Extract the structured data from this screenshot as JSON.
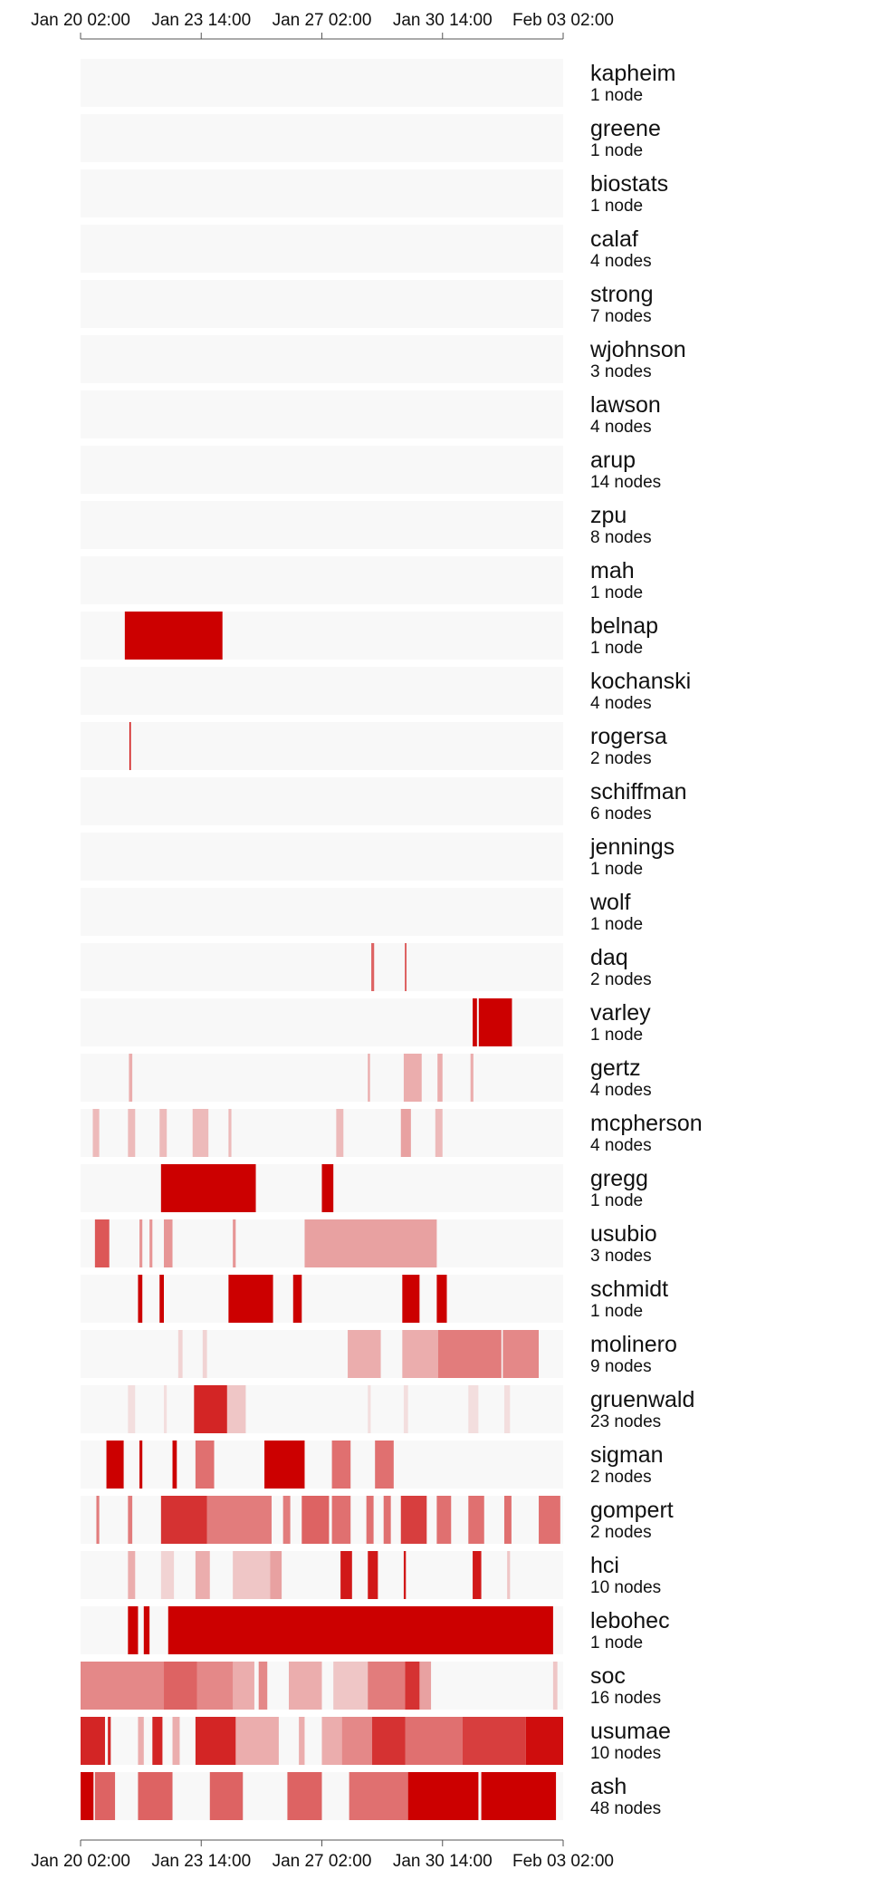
{
  "chart_data": {
    "type": "timeline-heatmap",
    "x_axis": {
      "domain": [
        "2024-01-20T02:00",
        "2024-02-03T02:00"
      ],
      "ticks": [
        {
          "t": "2024-01-20T02:00",
          "label": "Jan 20 02:00"
        },
        {
          "t": "2024-01-23T14:00",
          "label": "Jan 23 14:00"
        },
        {
          "t": "2024-01-27T02:00",
          "label": "Jan 27 02:00"
        },
        {
          "t": "2024-01-30T14:00",
          "label": "Jan 30 14:00"
        },
        {
          "t": "2024-02-03T02:00",
          "label": "Feb 03 02:00"
        }
      ]
    },
    "colors": {
      "high": "#cc0000",
      "background": "#f8f8f8",
      "axis": "#555555",
      "text": "#111111"
    },
    "rows": [
      {
        "name": "kapheim",
        "nodes": "1 node",
        "segments": []
      },
      {
        "name": "greene",
        "nodes": "1 node",
        "segments": []
      },
      {
        "name": "biostats",
        "nodes": "1 node",
        "segments": []
      },
      {
        "name": "calaf",
        "nodes": "4 nodes",
        "segments": []
      },
      {
        "name": "strong",
        "nodes": "7 nodes",
        "segments": []
      },
      {
        "name": "wjohnson",
        "nodes": "3 nodes",
        "segments": []
      },
      {
        "name": "lawson",
        "nodes": "4 nodes",
        "segments": []
      },
      {
        "name": "arup",
        "nodes": "14 nodes",
        "segments": []
      },
      {
        "name": "zpu",
        "nodes": "8 nodes",
        "segments": []
      },
      {
        "name": "mah",
        "nodes": "1 node",
        "segments": []
      },
      {
        "name": "belnap",
        "nodes": "1 node",
        "segments": [
          {
            "start": "2024-01-21T08:48",
            "end": "2024-01-24T04:47",
            "level": 1.0
          }
        ]
      },
      {
        "name": "kochanski",
        "nodes": "4 nodes",
        "segments": []
      },
      {
        "name": "rogersa",
        "nodes": "2 nodes",
        "segments": [
          {
            "start": "2024-01-21T12:00",
            "end": "2024-01-21T13:00",
            "level": 0.9
          }
        ]
      },
      {
        "name": "schiffman",
        "nodes": "6 nodes",
        "segments": []
      },
      {
        "name": "jennings",
        "nodes": "1 node",
        "segments": []
      },
      {
        "name": "wolf",
        "nodes": "1 node",
        "segments": []
      },
      {
        "name": "daq",
        "nodes": "2 nodes",
        "segments": [
          {
            "start": "2024-01-28T12:24",
            "end": "2024-01-28T14:24",
            "level": 0.6
          },
          {
            "start": "2024-01-29T11:52",
            "end": "2024-01-29T12:48",
            "level": 0.8
          }
        ]
      },
      {
        "name": "varley",
        "nodes": "1 node",
        "segments": [
          {
            "start": "2024-01-31T11:00",
            "end": "2024-01-31T14:00",
            "level": 1.0
          },
          {
            "start": "2024-01-31T15:15",
            "end": "2024-02-01T14:21",
            "level": 1.0
          }
        ]
      },
      {
        "name": "gertz",
        "nodes": "4 nodes",
        "segments": [
          {
            "start": "2024-01-21T11:40",
            "end": "2024-01-21T14:00",
            "level": 0.3
          },
          {
            "start": "2024-01-28T10:00",
            "end": "2024-01-28T11:30",
            "level": 0.3
          },
          {
            "start": "2024-01-29T11:00",
            "end": "2024-01-29T23:30",
            "level": 0.3
          },
          {
            "start": "2024-01-30T10:30",
            "end": "2024-01-30T14:00",
            "level": 0.3
          },
          {
            "start": "2024-01-31T09:30",
            "end": "2024-01-31T11:30",
            "level": 0.3
          }
        ]
      },
      {
        "name": "mcpherson",
        "nodes": "4 nodes",
        "segments": [
          {
            "start": "2024-01-20T10:30",
            "end": "2024-01-20T15:00",
            "level": 0.25
          },
          {
            "start": "2024-01-21T11:00",
            "end": "2024-01-21T16:00",
            "level": 0.25
          },
          {
            "start": "2024-01-22T09:00",
            "end": "2024-01-22T14:00",
            "level": 0.25
          },
          {
            "start": "2024-01-23T08:00",
            "end": "2024-01-23T19:00",
            "level": 0.25
          },
          {
            "start": "2024-01-24T09:00",
            "end": "2024-01-24T11:00",
            "level": 0.25
          },
          {
            "start": "2024-01-27T12:00",
            "end": "2024-01-27T17:00",
            "level": 0.25
          },
          {
            "start": "2024-01-29T09:00",
            "end": "2024-01-29T16:00",
            "level": 0.35
          },
          {
            "start": "2024-01-30T09:00",
            "end": "2024-01-30T14:00",
            "level": 0.25
          }
        ]
      },
      {
        "name": "gregg",
        "nodes": "1 node",
        "segments": [
          {
            "start": "2024-01-22T10:00",
            "end": "2024-01-25T04:00",
            "level": 1.0
          },
          {
            "start": "2024-01-27T02:00",
            "end": "2024-01-27T10:00",
            "level": 1.0
          }
        ]
      },
      {
        "name": "usubio",
        "nodes": "3 nodes",
        "segments": [
          {
            "start": "2024-01-20T12:00",
            "end": "2024-01-20T22:00",
            "level": 0.65
          },
          {
            "start": "2024-01-21T19:00",
            "end": "2024-01-21T21:00",
            "level": 0.4
          },
          {
            "start": "2024-01-22T02:00",
            "end": "2024-01-22T04:00",
            "level": 0.4
          },
          {
            "start": "2024-01-22T12:00",
            "end": "2024-01-22T18:00",
            "level": 0.4
          },
          {
            "start": "2024-01-24T12:00",
            "end": "2024-01-24T14:00",
            "level": 0.4
          },
          {
            "start": "2024-01-26T14:00",
            "end": "2024-01-30T10:00",
            "level": 0.35
          }
        ]
      },
      {
        "name": "schmidt",
        "nodes": "1 node",
        "segments": [
          {
            "start": "2024-01-21T18:00",
            "end": "2024-01-21T21:00",
            "level": 1.0
          },
          {
            "start": "2024-01-22T09:00",
            "end": "2024-01-22T12:00",
            "level": 1.0
          },
          {
            "start": "2024-01-24T09:00",
            "end": "2024-01-25T16:00",
            "level": 1.0
          },
          {
            "start": "2024-01-26T06:00",
            "end": "2024-01-26T12:00",
            "level": 1.0
          },
          {
            "start": "2024-01-29T10:00",
            "end": "2024-01-29T22:00",
            "level": 1.0
          },
          {
            "start": "2024-01-30T10:00",
            "end": "2024-01-30T17:00",
            "level": 1.0
          }
        ]
      },
      {
        "name": "molinero",
        "nodes": "9 nodes",
        "segments": [
          {
            "start": "2024-01-22T22:00",
            "end": "2024-01-23T01:00",
            "level": 0.15
          },
          {
            "start": "2024-01-23T15:00",
            "end": "2024-01-23T18:00",
            "level": 0.15
          },
          {
            "start": "2024-01-27T20:00",
            "end": "2024-01-28T19:00",
            "level": 0.3
          },
          {
            "start": "2024-01-29T10:00",
            "end": "2024-01-30T11:00",
            "level": 0.3
          },
          {
            "start": "2024-01-30T11:00",
            "end": "2024-02-01T07:00",
            "level": 0.5
          },
          {
            "start": "2024-02-01T08:00",
            "end": "2024-02-02T09:00",
            "level": 0.45
          }
        ]
      },
      {
        "name": "gruenwald",
        "nodes": "23 nodes",
        "segments": [
          {
            "start": "2024-01-21T11:00",
            "end": "2024-01-21T16:00",
            "level": 0.1
          },
          {
            "start": "2024-01-22T12:00",
            "end": "2024-01-22T14:00",
            "level": 0.1
          },
          {
            "start": "2024-01-23T09:00",
            "end": "2024-01-24T08:00",
            "level": 0.85
          },
          {
            "start": "2024-01-24T08:00",
            "end": "2024-01-24T21:00",
            "level": 0.2
          },
          {
            "start": "2024-01-28T10:00",
            "end": "2024-01-28T12:00",
            "level": 0.1
          },
          {
            "start": "2024-01-29T11:00",
            "end": "2024-01-29T14:00",
            "level": 0.1
          },
          {
            "start": "2024-01-31T08:00",
            "end": "2024-01-31T15:00",
            "level": 0.1
          },
          {
            "start": "2024-02-01T09:00",
            "end": "2024-02-01T13:00",
            "level": 0.1
          }
        ]
      },
      {
        "name": "sigman",
        "nodes": "2 nodes",
        "segments": [
          {
            "start": "2024-01-20T20:00",
            "end": "2024-01-21T08:00",
            "level": 1.0
          },
          {
            "start": "2024-01-21T19:00",
            "end": "2024-01-21T21:00",
            "level": 1.0
          },
          {
            "start": "2024-01-22T18:00",
            "end": "2024-01-22T21:00",
            "level": 1.0
          },
          {
            "start": "2024-01-23T10:00",
            "end": "2024-01-23T23:00",
            "level": 0.55
          },
          {
            "start": "2024-01-25T10:00",
            "end": "2024-01-26T14:00",
            "level": 1.0
          },
          {
            "start": "2024-01-27T09:00",
            "end": "2024-01-27T22:00",
            "level": 0.55
          },
          {
            "start": "2024-01-28T15:00",
            "end": "2024-01-29T04:00",
            "level": 0.55
          }
        ]
      },
      {
        "name": "gompert",
        "nodes": "2 nodes",
        "segments": [
          {
            "start": "2024-01-20T13:00",
            "end": "2024-01-20T15:00",
            "level": 0.5
          },
          {
            "start": "2024-01-21T11:00",
            "end": "2024-01-21T14:00",
            "level": 0.5
          },
          {
            "start": "2024-01-22T10:00",
            "end": "2024-01-23T18:00",
            "level": 0.8
          },
          {
            "start": "2024-01-23T18:00",
            "end": "2024-01-25T15:00",
            "level": 0.5
          },
          {
            "start": "2024-01-25T23:00",
            "end": "2024-01-26T04:00",
            "level": 0.5
          },
          {
            "start": "2024-01-26T12:00",
            "end": "2024-01-27T07:00",
            "level": 0.6
          },
          {
            "start": "2024-01-27T09:00",
            "end": "2024-01-27T22:00",
            "level": 0.55
          },
          {
            "start": "2024-01-28T09:00",
            "end": "2024-01-28T14:00",
            "level": 0.55
          },
          {
            "start": "2024-01-28T21:00",
            "end": "2024-01-29T02:00",
            "level": 0.55
          },
          {
            "start": "2024-01-29T09:00",
            "end": "2024-01-30T03:00",
            "level": 0.75
          },
          {
            "start": "2024-01-30T10:00",
            "end": "2024-01-30T20:00",
            "level": 0.55
          },
          {
            "start": "2024-01-31T08:00",
            "end": "2024-01-31T19:00",
            "level": 0.55
          },
          {
            "start": "2024-02-01T09:00",
            "end": "2024-02-01T14:00",
            "level": 0.55
          },
          {
            "start": "2024-02-02T09:00",
            "end": "2024-02-03T00:00",
            "level": 0.55
          }
        ]
      },
      {
        "name": "hci",
        "nodes": "10 nodes",
        "segments": [
          {
            "start": "2024-01-21T11:00",
            "end": "2024-01-21T16:00",
            "level": 0.3
          },
          {
            "start": "2024-01-22T10:00",
            "end": "2024-01-22T19:00",
            "level": 0.15
          },
          {
            "start": "2024-01-23T10:00",
            "end": "2024-01-23T20:00",
            "level": 0.3
          },
          {
            "start": "2024-01-24T12:00",
            "end": "2024-01-25T14:00",
            "level": 0.2
          },
          {
            "start": "2024-01-25T14:00",
            "end": "2024-01-25T22:00",
            "level": 0.35
          },
          {
            "start": "2024-01-27T15:00",
            "end": "2024-01-27T23:00",
            "level": 0.9
          },
          {
            "start": "2024-01-28T10:00",
            "end": "2024-01-28T17:00",
            "level": 0.9
          },
          {
            "start": "2024-01-29T11:00",
            "end": "2024-01-29T12:30",
            "level": 0.9
          },
          {
            "start": "2024-01-31T11:00",
            "end": "2024-01-31T17:00",
            "level": 0.9
          },
          {
            "start": "2024-02-01T11:00",
            "end": "2024-02-01T13:00",
            "level": 0.2
          }
        ]
      },
      {
        "name": "lebohec",
        "nodes": "1 node",
        "segments": [
          {
            "start": "2024-01-21T11:00",
            "end": "2024-01-21T18:00",
            "level": 1.0
          },
          {
            "start": "2024-01-21T22:00",
            "end": "2024-01-22T02:00",
            "level": 1.0
          },
          {
            "start": "2024-01-22T15:00",
            "end": "2024-02-02T19:00",
            "level": 1.0
          }
        ]
      },
      {
        "name": "soc",
        "nodes": "16 nodes",
        "segments": [
          {
            "start": "2024-01-20T02:00",
            "end": "2024-01-22T12:00",
            "level": 0.45
          },
          {
            "start": "2024-01-22T12:00",
            "end": "2024-01-23T11:00",
            "level": 0.6
          },
          {
            "start": "2024-01-23T11:00",
            "end": "2024-01-24T12:00",
            "level": 0.45
          },
          {
            "start": "2024-01-24T12:00",
            "end": "2024-01-25T03:00",
            "level": 0.3
          },
          {
            "start": "2024-01-25T06:00",
            "end": "2024-01-25T12:00",
            "level": 0.45
          },
          {
            "start": "2024-01-26T03:00",
            "end": "2024-01-27T02:00",
            "level": 0.3
          },
          {
            "start": "2024-01-27T10:00",
            "end": "2024-01-28T10:00",
            "level": 0.2
          },
          {
            "start": "2024-01-28T10:00",
            "end": "2024-01-29T12:00",
            "level": 0.5
          },
          {
            "start": "2024-01-29T12:00",
            "end": "2024-01-29T22:00",
            "level": 0.8
          },
          {
            "start": "2024-01-29T22:00",
            "end": "2024-01-30T06:00",
            "level": 0.35
          },
          {
            "start": "2024-02-02T19:00",
            "end": "2024-02-02T22:00",
            "level": 0.2
          }
        ]
      },
      {
        "name": "usumae",
        "nodes": "10 nodes",
        "segments": [
          {
            "start": "2024-01-20T02:00",
            "end": "2024-01-20T19:00",
            "level": 0.85
          },
          {
            "start": "2024-01-20T21:00",
            "end": "2024-01-20T23:00",
            "level": 0.85
          },
          {
            "start": "2024-01-21T18:00",
            "end": "2024-01-21T22:00",
            "level": 0.3
          },
          {
            "start": "2024-01-22T04:00",
            "end": "2024-01-22T11:00",
            "level": 0.85
          },
          {
            "start": "2024-01-22T18:00",
            "end": "2024-01-22T23:00",
            "level": 0.3
          },
          {
            "start": "2024-01-23T10:00",
            "end": "2024-01-24T14:00",
            "level": 0.85
          },
          {
            "start": "2024-01-24T14:00",
            "end": "2024-01-25T20:00",
            "level": 0.3
          },
          {
            "start": "2024-01-26T10:00",
            "end": "2024-01-26T14:00",
            "level": 0.3
          },
          {
            "start": "2024-01-27T02:00",
            "end": "2024-01-27T16:00",
            "level": 0.3
          },
          {
            "start": "2024-01-27T16:00",
            "end": "2024-01-28T13:00",
            "level": 0.45
          },
          {
            "start": "2024-01-28T13:00",
            "end": "2024-01-29T12:00",
            "level": 0.8
          },
          {
            "start": "2024-01-29T12:00",
            "end": "2024-01-31T04:00",
            "level": 0.55
          },
          {
            "start": "2024-01-31T04:00",
            "end": "2024-02-02T00:00",
            "level": 0.75
          },
          {
            "start": "2024-02-02T00:00",
            "end": "2024-02-03T02:00",
            "level": 0.95
          }
        ]
      },
      {
        "name": "ash",
        "nodes": "48 nodes",
        "segments": [
          {
            "start": "2024-01-20T02:00",
            "end": "2024-01-20T11:00",
            "level": 1.0
          },
          {
            "start": "2024-01-20T12:00",
            "end": "2024-01-21T02:00",
            "level": 0.6
          },
          {
            "start": "2024-01-21T18:00",
            "end": "2024-01-22T18:00",
            "level": 0.6
          },
          {
            "start": "2024-01-23T20:00",
            "end": "2024-01-24T19:00",
            "level": 0.6
          },
          {
            "start": "2024-01-26T02:00",
            "end": "2024-01-27T02:00",
            "level": 0.6
          },
          {
            "start": "2024-01-27T21:00",
            "end": "2024-01-29T14:00",
            "level": 0.55
          },
          {
            "start": "2024-01-29T14:00",
            "end": "2024-01-31T15:00",
            "level": 1.0
          },
          {
            "start": "2024-01-31T17:00",
            "end": "2024-02-02T21:00",
            "level": 1.0
          }
        ]
      }
    ]
  }
}
